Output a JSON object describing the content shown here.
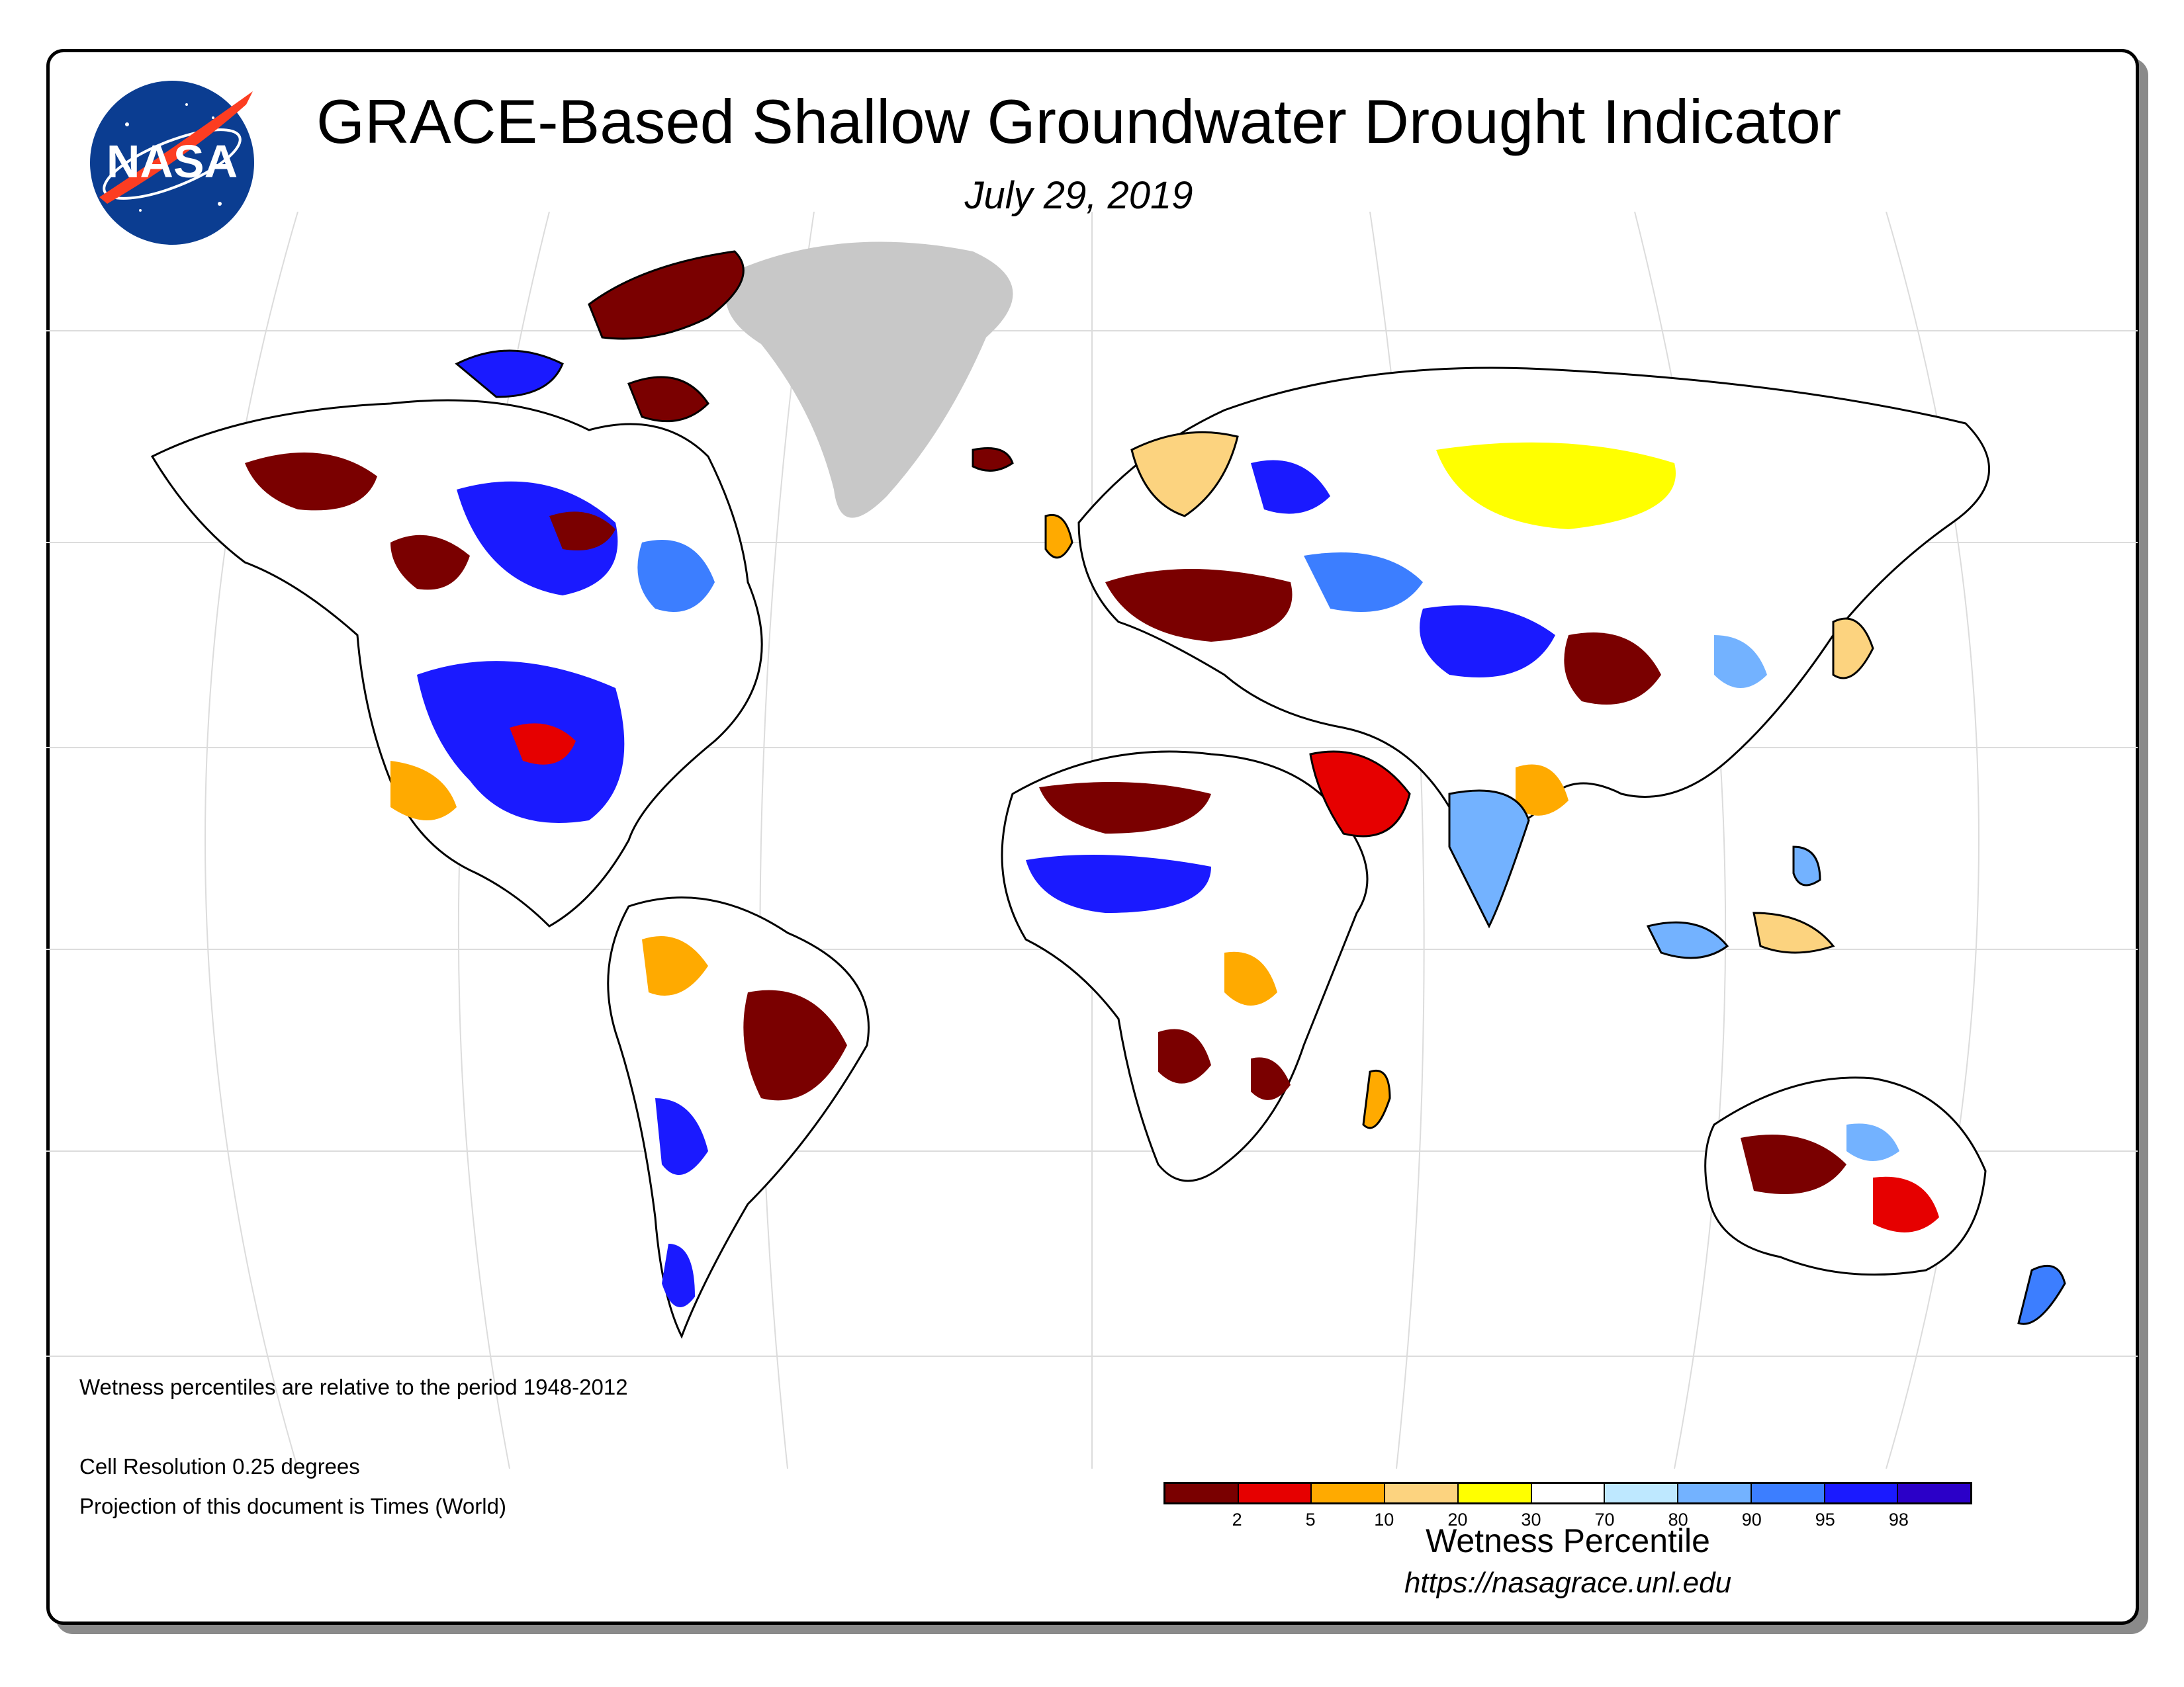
{
  "header": {
    "title": "GRACE-Based Shallow Groundwater Drought Indicator",
    "date": "July 29, 2019",
    "logo_text": "NASA"
  },
  "notes": {
    "period": "Wetness percentiles are relative to the period 1948-2012",
    "resolution": "Cell Resolution 0.25 degrees",
    "projection": "Projection of this document is Times (World)"
  },
  "legend": {
    "title": "Wetness Percentile",
    "tick_labels": [
      "2",
      "5",
      "10",
      "20",
      "30",
      "70",
      "80",
      "90",
      "95",
      "98"
    ],
    "colors": [
      "#7a0000",
      "#e60000",
      "#ffaa00",
      "#fcd37f",
      "#ffff00",
      "#ffffff",
      "#bee8ff",
      "#73b2ff",
      "#3c7eff",
      "#1a1aff",
      "#2b00c8"
    ]
  },
  "footer": {
    "url": "https://nasagrace.unl.edu"
  },
  "map": {
    "no_data_color": "#c8c8c8",
    "land_colors": {
      "extreme_dry": "#7a0000",
      "severe_dry": "#e60000",
      "moderate_dry": "#ffaa00",
      "abnormal_dry": "#fcd37f",
      "slight_dry": "#ffff00",
      "normal": "#ffffff",
      "slight_wet": "#bee8ff",
      "wet": "#73b2ff",
      "very_wet": "#3c7eff",
      "extreme_wet": "#1a1aff"
    }
  }
}
